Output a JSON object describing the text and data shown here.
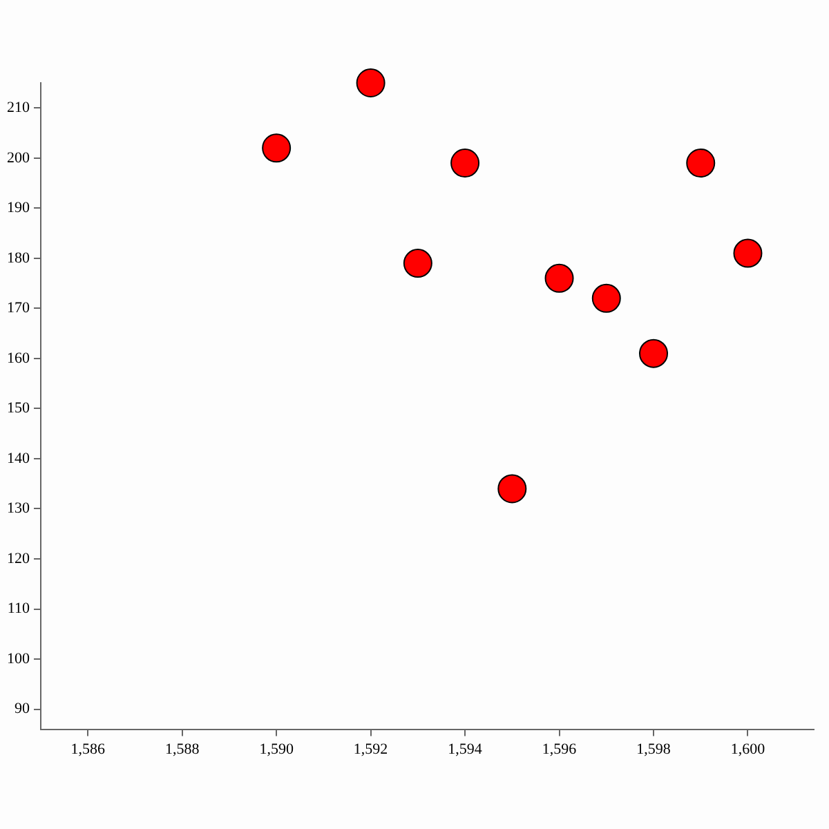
{
  "chart_data": {
    "type": "scatter",
    "x": [
      1590,
      1592,
      1593,
      1594,
      1595,
      1596,
      1597,
      1598,
      1599,
      1600
    ],
    "values": [
      202,
      215,
      179,
      199,
      134,
      176,
      172,
      161,
      199,
      181
    ],
    "color": "#ff0000",
    "marker": "circle",
    "xlim": [
      1585,
      1601.4
    ],
    "ylim": [
      86,
      215
    ],
    "xticks": [
      {
        "value": 1586,
        "label": "1,586"
      },
      {
        "value": 1588,
        "label": "1,588"
      },
      {
        "value": 1590,
        "label": "1,590"
      },
      {
        "value": 1592,
        "label": "1,592"
      },
      {
        "value": 1594,
        "label": "1,594"
      },
      {
        "value": 1596,
        "label": "1,596"
      },
      {
        "value": 1598,
        "label": "1,598"
      },
      {
        "value": 1600,
        "label": "1,600"
      }
    ],
    "yticks": [
      90,
      100,
      110,
      120,
      130,
      140,
      150,
      160,
      170,
      180,
      190,
      200,
      210
    ]
  }
}
